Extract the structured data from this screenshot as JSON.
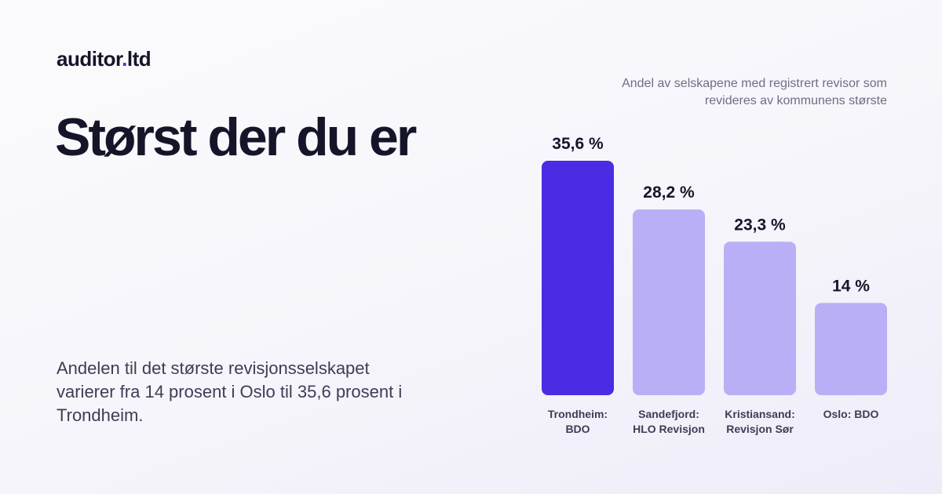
{
  "brand": {
    "name_main": "auditor",
    "name_dot": ".",
    "name_tld": "ltd"
  },
  "headline": "Størst der du er",
  "description": "Andelen til det største revisjonsselskapet varierer fra 14 prosent i Oslo til 35,6 prosent i Trondheim.",
  "chart_data": {
    "type": "bar",
    "title": "Andel av selskapene med registrert revisor som revideres av kommunens største",
    "categories": [
      [
        "Trondheim:",
        "BDO"
      ],
      [
        "Sandefjord:",
        "HLO Revisjon"
      ],
      [
        "Kristiansand:",
        "Revisjon Sør"
      ],
      [
        "Oslo: BDO"
      ]
    ],
    "values": [
      35.6,
      28.2,
      23.3,
      14
    ],
    "value_labels": [
      "35,6 %",
      "28,2 %",
      "23,3 %",
      "14 %"
    ],
    "ylim": [
      0,
      35.6
    ],
    "grid": false,
    "colors": {
      "highlight": "#4b2be3",
      "default": "#b8aff6"
    },
    "highlight_index": 0
  }
}
